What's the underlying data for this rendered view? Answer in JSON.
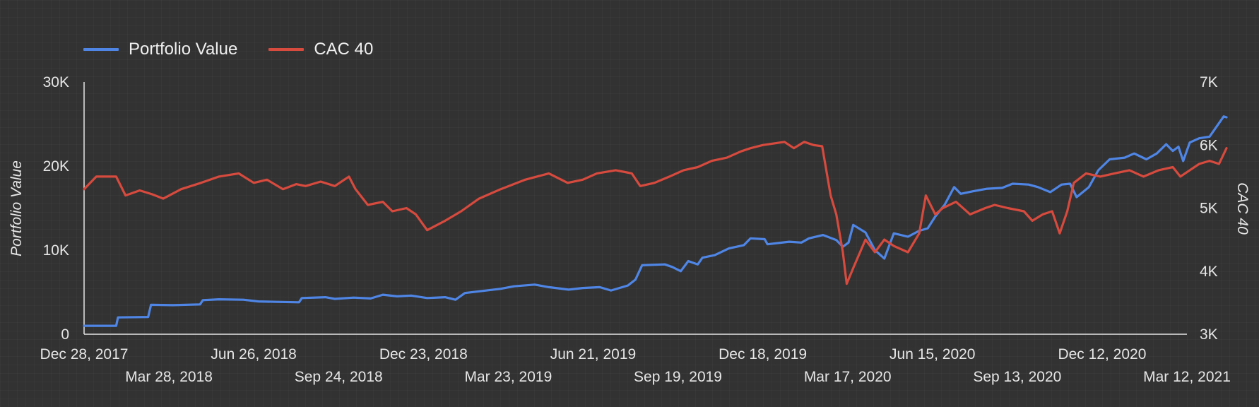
{
  "colors": {
    "background": "#323232",
    "portfolio": "#4f86e6",
    "cac": "#d74a3e",
    "axis": "#e6e6e6"
  },
  "legend": {
    "portfolio": "Portfolio Value",
    "cac": "CAC 40"
  },
  "chart_data": {
    "type": "line",
    "grid": false,
    "legend_position": "top-left",
    "x_range": [
      "2017-12-28",
      "2021-03-12"
    ],
    "x_ticks": [
      {
        "date": "2017-12-28",
        "label": "Dec 28, 2017",
        "row": 0
      },
      {
        "date": "2018-03-28",
        "label": "Mar 28, 2018",
        "row": 1
      },
      {
        "date": "2018-06-26",
        "label": "Jun 26, 2018",
        "row": 0
      },
      {
        "date": "2018-09-24",
        "label": "Sep 24, 2018",
        "row": 1
      },
      {
        "date": "2018-12-23",
        "label": "Dec 23, 2018",
        "row": 0
      },
      {
        "date": "2019-03-23",
        "label": "Mar 23, 2019",
        "row": 1
      },
      {
        "date": "2019-06-21",
        "label": "Jun 21, 2019",
        "row": 0
      },
      {
        "date": "2019-09-19",
        "label": "Sep 19, 2019",
        "row": 1
      },
      {
        "date": "2019-12-18",
        "label": "Dec 18, 2019",
        "row": 0
      },
      {
        "date": "2020-03-17",
        "label": "Mar 17, 2020",
        "row": 1
      },
      {
        "date": "2020-06-15",
        "label": "Jun 15, 2020",
        "row": 0
      },
      {
        "date": "2020-09-13",
        "label": "Sep 13, 2020",
        "row": 1
      },
      {
        "date": "2020-12-12",
        "label": "Dec 12, 2020",
        "row": 0
      },
      {
        "date": "2021-03-12",
        "label": "Mar 12, 2021",
        "row": 1
      }
    ],
    "y_left": {
      "label": "Portfolio Value",
      "range": [
        0,
        30000
      ],
      "ticks": [
        {
          "value": 0,
          "label": "0"
        },
        {
          "value": 10000,
          "label": "10K"
        },
        {
          "value": 20000,
          "label": "20K"
        },
        {
          "value": 30000,
          "label": "30K"
        }
      ]
    },
    "y_right": {
      "label": "CAC 40",
      "range": [
        3000,
        7000
      ],
      "ticks": [
        {
          "value": 3000,
          "label": "3K"
        },
        {
          "value": 4000,
          "label": "4K"
        },
        {
          "value": 5000,
          "label": "5K"
        },
        {
          "value": 6000,
          "label": "6K"
        },
        {
          "value": 7000,
          "label": "7K"
        }
      ]
    },
    "series": [
      {
        "name": "Portfolio Value",
        "axis": "left",
        "points": [
          [
            "2017-12-28",
            1000
          ],
          [
            "2018-01-31",
            1000
          ],
          [
            "2018-02-02",
            2000
          ],
          [
            "2018-03-06",
            2050
          ],
          [
            "2018-03-09",
            3500
          ],
          [
            "2018-04-01",
            3450
          ],
          [
            "2018-04-30",
            3550
          ],
          [
            "2018-05-03",
            4050
          ],
          [
            "2018-05-20",
            4150
          ],
          [
            "2018-06-15",
            4100
          ],
          [
            "2018-07-01",
            3900
          ],
          [
            "2018-07-20",
            3850
          ],
          [
            "2018-08-13",
            3800
          ],
          [
            "2018-08-16",
            4300
          ],
          [
            "2018-09-10",
            4400
          ],
          [
            "2018-09-20",
            4200
          ],
          [
            "2018-10-10",
            4350
          ],
          [
            "2018-10-28",
            4250
          ],
          [
            "2018-11-10",
            4700
          ],
          [
            "2018-11-25",
            4500
          ],
          [
            "2018-12-10",
            4600
          ],
          [
            "2018-12-27",
            4300
          ],
          [
            "2019-01-15",
            4400
          ],
          [
            "2019-01-26",
            4100
          ],
          [
            "2019-02-05",
            4900
          ],
          [
            "2019-02-20",
            5100
          ],
          [
            "2019-03-15",
            5400
          ],
          [
            "2019-03-29",
            5700
          ],
          [
            "2019-04-20",
            5900
          ],
          [
            "2019-05-05",
            5600
          ],
          [
            "2019-05-26",
            5300
          ],
          [
            "2019-06-10",
            5500
          ],
          [
            "2019-06-28",
            5600
          ],
          [
            "2019-07-10",
            5200
          ],
          [
            "2019-07-28",
            5800
          ],
          [
            "2019-08-05",
            6500
          ],
          [
            "2019-08-12",
            8200
          ],
          [
            "2019-09-05",
            8300
          ],
          [
            "2019-09-13",
            8000
          ],
          [
            "2019-09-22",
            7500
          ],
          [
            "2019-09-30",
            8700
          ],
          [
            "2019-10-10",
            8300
          ],
          [
            "2019-10-15",
            9100
          ],
          [
            "2019-10-28",
            9400
          ],
          [
            "2019-11-12",
            10200
          ],
          [
            "2019-11-28",
            10600
          ],
          [
            "2019-12-05",
            11400
          ],
          [
            "2019-12-20",
            11300
          ],
          [
            "2019-12-23",
            10700
          ],
          [
            "2020-01-15",
            11000
          ],
          [
            "2020-01-28",
            10900
          ],
          [
            "2020-02-05",
            11400
          ],
          [
            "2020-02-20",
            11800
          ],
          [
            "2020-03-05",
            11200
          ],
          [
            "2020-03-12",
            10400
          ],
          [
            "2020-03-18",
            10900
          ],
          [
            "2020-03-23",
            13000
          ],
          [
            "2020-04-05",
            12100
          ],
          [
            "2020-04-15",
            10000
          ],
          [
            "2020-04-25",
            9000
          ],
          [
            "2020-05-05",
            12000
          ],
          [
            "2020-05-20",
            11600
          ],
          [
            "2020-06-01",
            12300
          ],
          [
            "2020-06-10",
            12600
          ],
          [
            "2020-06-18",
            14000
          ],
          [
            "2020-06-28",
            15400
          ],
          [
            "2020-07-08",
            17500
          ],
          [
            "2020-07-15",
            16700
          ],
          [
            "2020-07-28",
            17000
          ],
          [
            "2020-08-12",
            17300
          ],
          [
            "2020-08-28",
            17400
          ],
          [
            "2020-09-08",
            17900
          ],
          [
            "2020-09-25",
            17800
          ],
          [
            "2020-10-05",
            17500
          ],
          [
            "2020-10-18",
            16900
          ],
          [
            "2020-10-30",
            17800
          ],
          [
            "2020-11-08",
            17900
          ],
          [
            "2020-11-15",
            16300
          ],
          [
            "2020-11-28",
            17500
          ],
          [
            "2020-12-08",
            19500
          ],
          [
            "2020-12-20",
            20800
          ],
          [
            "2021-01-05",
            21000
          ],
          [
            "2021-01-15",
            21500
          ],
          [
            "2021-01-28",
            20800
          ],
          [
            "2021-02-08",
            21500
          ],
          [
            "2021-02-18",
            22600
          ],
          [
            "2021-02-25",
            21800
          ],
          [
            "2021-03-03",
            22300
          ],
          [
            "2021-03-08",
            20600
          ],
          [
            "2021-03-15",
            22800
          ],
          [
            "2021-03-25",
            23300
          ],
          [
            "2021-04-05",
            23500
          ],
          [
            "2021-04-20",
            25900
          ],
          [
            "2021-04-23",
            25800
          ]
        ]
      },
      {
        "name": "CAC 40",
        "axis": "right",
        "points": [
          [
            "2017-12-28",
            5300
          ],
          [
            "2018-01-10",
            5500
          ],
          [
            "2018-01-31",
            5500
          ],
          [
            "2018-02-10",
            5200
          ],
          [
            "2018-02-25",
            5280
          ],
          [
            "2018-03-10",
            5220
          ],
          [
            "2018-03-22",
            5150
          ],
          [
            "2018-04-10",
            5300
          ],
          [
            "2018-05-01",
            5400
          ],
          [
            "2018-05-20",
            5500
          ],
          [
            "2018-06-10",
            5550
          ],
          [
            "2018-06-26",
            5400
          ],
          [
            "2018-07-10",
            5450
          ],
          [
            "2018-07-27",
            5300
          ],
          [
            "2018-08-10",
            5380
          ],
          [
            "2018-08-20",
            5350
          ],
          [
            "2018-09-05",
            5420
          ],
          [
            "2018-09-20",
            5350
          ],
          [
            "2018-10-05",
            5500
          ],
          [
            "2018-10-12",
            5300
          ],
          [
            "2018-10-25",
            5050
          ],
          [
            "2018-11-10",
            5100
          ],
          [
            "2018-11-20",
            4950
          ],
          [
            "2018-12-05",
            5000
          ],
          [
            "2018-12-15",
            4900
          ],
          [
            "2018-12-27",
            4650
          ],
          [
            "2019-01-15",
            4800
          ],
          [
            "2019-02-01",
            4950
          ],
          [
            "2019-02-20",
            5150
          ],
          [
            "2019-03-15",
            5300
          ],
          [
            "2019-04-10",
            5450
          ],
          [
            "2019-05-05",
            5550
          ],
          [
            "2019-05-25",
            5400
          ],
          [
            "2019-06-10",
            5450
          ],
          [
            "2019-06-25",
            5550
          ],
          [
            "2019-07-15",
            5600
          ],
          [
            "2019-08-01",
            5550
          ],
          [
            "2019-08-10",
            5350
          ],
          [
            "2019-08-25",
            5400
          ],
          [
            "2019-09-10",
            5500
          ],
          [
            "2019-09-25",
            5600
          ],
          [
            "2019-10-10",
            5650
          ],
          [
            "2019-10-25",
            5750
          ],
          [
            "2019-11-10",
            5800
          ],
          [
            "2019-11-25",
            5900
          ],
          [
            "2019-12-05",
            5950
          ],
          [
            "2019-12-18",
            6000
          ],
          [
            "2020-01-10",
            6050
          ],
          [
            "2020-01-20",
            5950
          ],
          [
            "2020-01-31",
            6050
          ],
          [
            "2020-02-10",
            6000
          ],
          [
            "2020-02-19",
            5980
          ],
          [
            "2020-02-28",
            5200
          ],
          [
            "2020-03-05",
            4900
          ],
          [
            "2020-03-12",
            4300
          ],
          [
            "2020-03-16",
            3800
          ],
          [
            "2020-03-23",
            4050
          ],
          [
            "2020-04-05",
            4500
          ],
          [
            "2020-04-15",
            4300
          ],
          [
            "2020-04-25",
            4500
          ],
          [
            "2020-05-05",
            4400
          ],
          [
            "2020-05-20",
            4300
          ],
          [
            "2020-06-01",
            4600
          ],
          [
            "2020-06-08",
            5200
          ],
          [
            "2020-06-18",
            4900
          ],
          [
            "2020-06-26",
            5000
          ],
          [
            "2020-07-10",
            5100
          ],
          [
            "2020-07-25",
            4900
          ],
          [
            "2020-08-10",
            5000
          ],
          [
            "2020-08-20",
            5050
          ],
          [
            "2020-09-03",
            5000
          ],
          [
            "2020-09-20",
            4950
          ],
          [
            "2020-09-29",
            4800
          ],
          [
            "2020-10-10",
            4900
          ],
          [
            "2020-10-20",
            4950
          ],
          [
            "2020-10-28",
            4600
          ],
          [
            "2020-11-05",
            4950
          ],
          [
            "2020-11-12",
            5400
          ],
          [
            "2020-11-25",
            5550
          ],
          [
            "2020-12-10",
            5500
          ],
          [
            "2020-12-25",
            5550
          ],
          [
            "2021-01-10",
            5600
          ],
          [
            "2021-01-25",
            5500
          ],
          [
            "2021-02-10",
            5600
          ],
          [
            "2021-02-25",
            5650
          ],
          [
            "2021-03-05",
            5500
          ],
          [
            "2021-03-10",
            5550
          ],
          [
            "2021-03-15",
            5600
          ],
          [
            "2021-03-25",
            5700
          ],
          [
            "2021-04-05",
            5750
          ],
          [
            "2021-04-15",
            5700
          ],
          [
            "2021-04-23",
            5950
          ]
        ]
      }
    ]
  }
}
